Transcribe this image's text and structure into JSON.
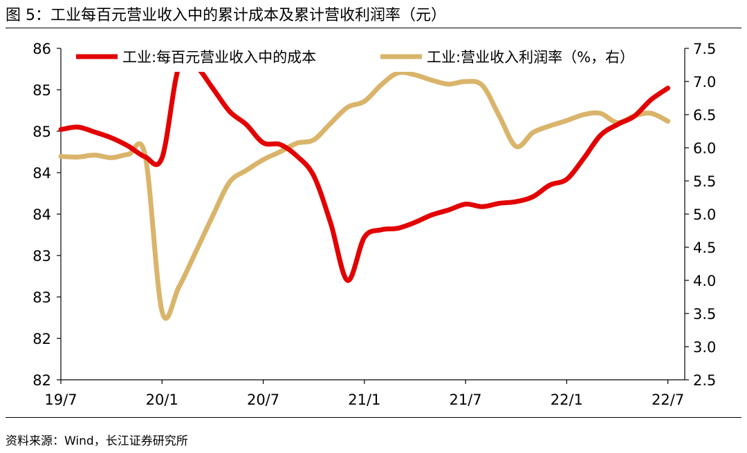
{
  "header": {
    "title": "图 5：工业每百元营业收入中的累计成本及累计营收利润率（元）"
  },
  "footer": {
    "source": "资料来源：Wind，长江证券研究所"
  },
  "chart_data": {
    "type": "line",
    "title": "图 5：工业每百元营业收入中的累计成本及累计营收利润率（元）",
    "x_tick_labels": [
      "19/7",
      "20/1",
      "20/7",
      "21/1",
      "21/7",
      "22/1",
      "22/7"
    ],
    "left_axis": {
      "tick_labels": [
        "82",
        "82",
        "83",
        "83",
        "84",
        "84",
        "85",
        "85",
        "86"
      ],
      "ylim": [
        82.0,
        86.0
      ],
      "step": 0.5
    },
    "right_axis": {
      "tick_labels": [
        "2.5",
        "3.0",
        "3.5",
        "4.0",
        "4.5",
        "5.0",
        "5.5",
        "6.0",
        "6.5",
        "7.0",
        "7.5"
      ],
      "ylim": [
        2.5,
        7.5
      ],
      "step": 0.5
    },
    "x_range": [
      0,
      37
    ],
    "legend": "top",
    "series": [
      {
        "name": "工业:每百元营业收入中的成本",
        "axis": "left",
        "color": "#E20000",
        "x": [
          0,
          1,
          2,
          3,
          4,
          5,
          6,
          7,
          8,
          9,
          10,
          11,
          12,
          13,
          14,
          15,
          16,
          17,
          18,
          19,
          20,
          21,
          22,
          23,
          24,
          25,
          26,
          27,
          28,
          29,
          30,
          31,
          32,
          33,
          34,
          35,
          36
        ],
        "values": [
          85.02,
          85.05,
          84.99,
          84.92,
          84.82,
          84.69,
          84.68,
          85.78,
          85.78,
          85.52,
          85.24,
          85.08,
          84.86,
          84.84,
          84.7,
          84.46,
          83.89,
          83.2,
          83.72,
          83.81,
          83.83,
          83.9,
          83.99,
          84.05,
          84.12,
          84.09,
          84.13,
          84.15,
          84.21,
          84.35,
          84.42,
          84.67,
          84.95,
          85.08,
          85.18,
          85.38,
          85.52
        ]
      },
      {
        "name": "工业:营业收入利润率（%，右）",
        "axis": "right",
        "color": "#D9B46A",
        "x": [
          0,
          1,
          2,
          3,
          4,
          5,
          6,
          7,
          8,
          9,
          10,
          11,
          12,
          13,
          14,
          15,
          16,
          17,
          18,
          19,
          20,
          21,
          22,
          23,
          24,
          25,
          26,
          27,
          28,
          29,
          30,
          31,
          32,
          33,
          34,
          35,
          36
        ],
        "values": [
          5.87,
          5.86,
          5.89,
          5.85,
          5.9,
          5.88,
          3.53,
          3.9,
          4.43,
          4.97,
          5.48,
          5.66,
          5.82,
          5.94,
          6.07,
          6.12,
          6.37,
          6.61,
          6.7,
          6.95,
          7.13,
          7.1,
          7.02,
          6.96,
          7.0,
          6.94,
          6.48,
          6.02,
          6.23,
          6.33,
          6.41,
          6.5,
          6.52,
          6.38,
          6.48,
          6.52,
          6.4
        ]
      }
    ]
  }
}
